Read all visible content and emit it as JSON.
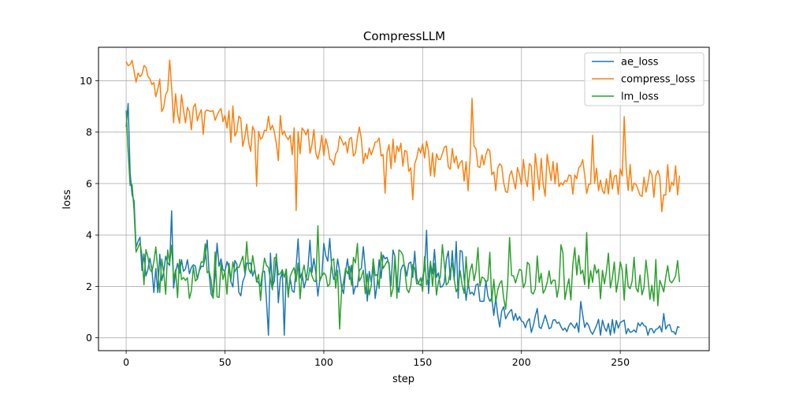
{
  "chart_data": {
    "type": "line",
    "title": "CompressLLM",
    "xlabel": "step",
    "ylabel": "loss",
    "xlim": [
      -14,
      295
    ],
    "ylim": [
      -0.5,
      11.3
    ],
    "xticks": [
      0,
      50,
      100,
      150,
      200,
      250
    ],
    "yticks": [
      0,
      2,
      4,
      6,
      8,
      10
    ],
    "grid": true,
    "legend_position": "top-right",
    "n_steps": 281,
    "series": [
      {
        "name": "ae_loss",
        "color": "#1f77b4",
        "anchors": [
          [
            0,
            8.0
          ],
          [
            1,
            9.3
          ],
          [
            2,
            6.5
          ],
          [
            4,
            5.2
          ],
          [
            6,
            3.3
          ],
          [
            10,
            2.8
          ],
          [
            30,
            2.6
          ],
          [
            60,
            2.5
          ],
          [
            100,
            2.5
          ],
          [
            140,
            2.5
          ],
          [
            170,
            2.4
          ],
          [
            180,
            1.5
          ],
          [
            190,
            0.9
          ],
          [
            200,
            0.7
          ],
          [
            220,
            0.5
          ],
          [
            250,
            0.45
          ],
          [
            280,
            0.35
          ]
        ],
        "noise": [
          [
            0,
            0.6
          ],
          [
            10,
            0.55
          ],
          [
            170,
            0.55
          ],
          [
            185,
            0.3
          ],
          [
            200,
            0.2
          ],
          [
            280,
            0.15
          ]
        ],
        "floor": 0.1
      },
      {
        "name": "compress_loss",
        "color": "#ff7f0e",
        "anchors": [
          [
            0,
            10.6
          ],
          [
            10,
            10.2
          ],
          [
            20,
            9.3
          ],
          [
            40,
            8.5
          ],
          [
            60,
            8.0
          ],
          [
            80,
            7.8
          ],
          [
            100,
            7.5
          ],
          [
            120,
            7.3
          ],
          [
            150,
            7.0
          ],
          [
            180,
            6.6
          ],
          [
            200,
            6.4
          ],
          [
            230,
            6.2
          ],
          [
            260,
            6.0
          ],
          [
            280,
            6.0
          ]
        ],
        "noise": [
          [
            0,
            0.1
          ],
          [
            10,
            0.25
          ],
          [
            30,
            0.45
          ],
          [
            280,
            0.45
          ]
        ],
        "floor": 3.5
      },
      {
        "name": "lm_loss",
        "color": "#2ca02c",
        "anchors": [
          [
            0,
            8.5
          ],
          [
            1,
            8.0
          ],
          [
            2,
            6.0
          ],
          [
            3,
            5.5
          ],
          [
            5,
            3.3
          ],
          [
            10,
            2.8
          ],
          [
            30,
            2.5
          ],
          [
            100,
            2.5
          ],
          [
            200,
            2.4
          ],
          [
            280,
            2.4
          ]
        ],
        "noise": [
          [
            0,
            0.6
          ],
          [
            10,
            0.5
          ],
          [
            280,
            0.5
          ]
        ],
        "floor": 0.25
      }
    ]
  }
}
